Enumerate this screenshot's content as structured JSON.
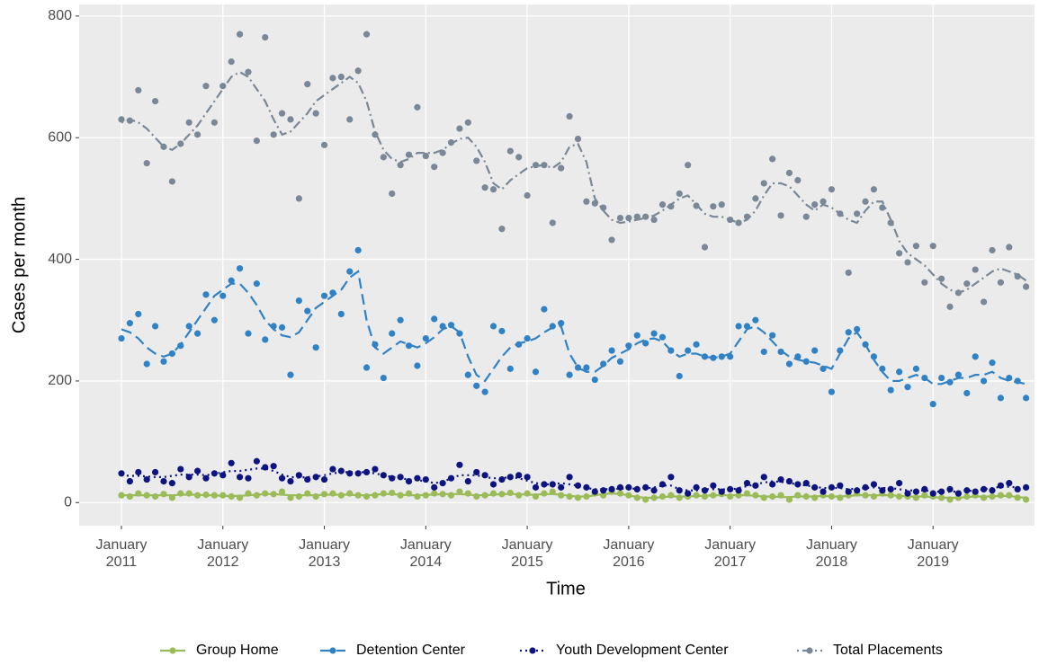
{
  "chart_data": {
    "type": "scatter",
    "x_label": "Time",
    "y_label": "Cases per month",
    "x": [
      "2011-01",
      "2011-02",
      "2011-03",
      "2011-04",
      "2011-05",
      "2011-06",
      "2011-07",
      "2011-08",
      "2011-09",
      "2011-10",
      "2011-11",
      "2011-12",
      "2012-01",
      "2012-02",
      "2012-03",
      "2012-04",
      "2012-05",
      "2012-06",
      "2012-07",
      "2012-08",
      "2012-09",
      "2012-10",
      "2012-11",
      "2012-12",
      "2013-01",
      "2013-02",
      "2013-03",
      "2013-04",
      "2013-05",
      "2013-06",
      "2013-07",
      "2013-08",
      "2013-09",
      "2013-10",
      "2013-11",
      "2013-12",
      "2014-01",
      "2014-02",
      "2014-03",
      "2014-04",
      "2014-05",
      "2014-06",
      "2014-07",
      "2014-08",
      "2014-09",
      "2014-10",
      "2014-11",
      "2014-12",
      "2015-01",
      "2015-02",
      "2015-03",
      "2015-04",
      "2015-05",
      "2015-06",
      "2015-07",
      "2015-08",
      "2015-09",
      "2015-10",
      "2015-11",
      "2015-12",
      "2016-01",
      "2016-02",
      "2016-03",
      "2016-04",
      "2016-05",
      "2016-06",
      "2016-07",
      "2016-08",
      "2016-09",
      "2016-10",
      "2016-11",
      "2016-12",
      "2017-01",
      "2017-02",
      "2017-03",
      "2017-04",
      "2017-05",
      "2017-06",
      "2017-07",
      "2017-08",
      "2017-09",
      "2017-10",
      "2017-11",
      "2017-12",
      "2018-01",
      "2018-02",
      "2018-03",
      "2018-04",
      "2018-05",
      "2018-06",
      "2018-07",
      "2018-08",
      "2018-09",
      "2018-10",
      "2018-11",
      "2018-12",
      "2019-01",
      "2019-02",
      "2019-03",
      "2019-04",
      "2019-05",
      "2019-06",
      "2019-07",
      "2019-08",
      "2019-09",
      "2019-10",
      "2019-11",
      "2019-12"
    ],
    "xlim": [
      "2010-08",
      "2020-01"
    ],
    "xticks": [
      {
        "value": "2011-01",
        "label": "January\n2011"
      },
      {
        "value": "2012-01",
        "label": "January\n2012"
      },
      {
        "value": "2013-01",
        "label": "January\n2013"
      },
      {
        "value": "2014-01",
        "label": "January\n2014"
      },
      {
        "value": "2015-01",
        "label": "January\n2015"
      },
      {
        "value": "2016-01",
        "label": "January\n2016"
      },
      {
        "value": "2017-01",
        "label": "January\n2017"
      },
      {
        "value": "2018-01",
        "label": "January\n2018"
      },
      {
        "value": "2019-01",
        "label": "January\n2019"
      }
    ],
    "ylim": [
      -38,
      819
    ],
    "yticks": [
      0,
      200,
      400,
      600,
      800
    ],
    "grid": true,
    "legend": "bottom",
    "series": [
      {
        "name": "Group Home",
        "color": "#9bbb59",
        "dash": "solid",
        "values": [
          12,
          10,
          15,
          12,
          10,
          14,
          8,
          15,
          15,
          12,
          13,
          12,
          12,
          10,
          8,
          15,
          12,
          15,
          14,
          18,
          8,
          10,
          15,
          10,
          14,
          15,
          12,
          15,
          12,
          10,
          12,
          15,
          16,
          12,
          15,
          10,
          12,
          15,
          14,
          12,
          18,
          15,
          10,
          12,
          15,
          14,
          16,
          12,
          15,
          10,
          15,
          18,
          12,
          10,
          8,
          10,
          15,
          12,
          18,
          15,
          12,
          8,
          5,
          8,
          10,
          12,
          8,
          10,
          12,
          10,
          12,
          14,
          10,
          12,
          15,
          12,
          8,
          10,
          12,
          5,
          12,
          10,
          8,
          12,
          10,
          8,
          12,
          15,
          12,
          10,
          15,
          12,
          10,
          10,
          8,
          12,
          10,
          8,
          5,
          8,
          10,
          12,
          8,
          10,
          12,
          12,
          8,
          5
        ],
        "trend": [
          12,
          12,
          12,
          12,
          12,
          12,
          12,
          13,
          13,
          13,
          12,
          12,
          11,
          11,
          11,
          12,
          13,
          14,
          14,
          13,
          12,
          12,
          12,
          12,
          13,
          13,
          13,
          13,
          12,
          12,
          13,
          14,
          14,
          13,
          12,
          12,
          13,
          13,
          14,
          14,
          14,
          13,
          12,
          12,
          13,
          14,
          14,
          14,
          13,
          13,
          14,
          14,
          13,
          11,
          10,
          10,
          12,
          14,
          15,
          14,
          12,
          9,
          8,
          8,
          9,
          10,
          10,
          10,
          11,
          11,
          12,
          12,
          12,
          12,
          12,
          11,
          10,
          10,
          9,
          9,
          10,
          10,
          10,
          11,
          10,
          10,
          11,
          12,
          12,
          12,
          12,
          12,
          11,
          10,
          10,
          10,
          9,
          8,
          8,
          8,
          9,
          10,
          10,
          10,
          11,
          11,
          9,
          8
        ]
      },
      {
        "name": "Detention Center",
        "color": "#3182c4",
        "dash": "longdash",
        "values": [
          270,
          295,
          310,
          228,
          290,
          232,
          245,
          258,
          290,
          278,
          342,
          300,
          340,
          365,
          385,
          278,
          360,
          268,
          290,
          288,
          210,
          332,
          315,
          255,
          340,
          345,
          310,
          380,
          415,
          222,
          260,
          205,
          278,
          300,
          258,
          225,
          270,
          302,
          290,
          292,
          278,
          210,
          192,
          182,
          290,
          282,
          220,
          260,
          270,
          215,
          318,
          290,
          295,
          210,
          222,
          222,
          202,
          228,
          250,
          232,
          258,
          275,
          262,
          278,
          272,
          250,
          208,
          250,
          260,
          240,
          238,
          240,
          240,
          290,
          290,
          300,
          248,
          275,
          248,
          228,
          240,
          232,
          250,
          220,
          182,
          250,
          280,
          285,
          260,
          240,
          220,
          185,
          215,
          190,
          220,
          205,
          162,
          205,
          198,
          210,
          180,
          240,
          200,
          230,
          172,
          205,
          200,
          172
        ],
        "trend": [
          285,
          280,
          270,
          255,
          245,
          240,
          245,
          260,
          280,
          300,
          320,
          340,
          350,
          360,
          360,
          345,
          325,
          300,
          285,
          275,
          272,
          280,
          300,
          320,
          330,
          340,
          350,
          370,
          380,
          300,
          255,
          245,
          255,
          265,
          260,
          255,
          262,
          272,
          285,
          290,
          280,
          240,
          210,
          200,
          220,
          240,
          255,
          262,
          265,
          270,
          280,
          288,
          290,
          245,
          222,
          215,
          215,
          225,
          238,
          245,
          252,
          262,
          268,
          270,
          265,
          250,
          240,
          245,
          245,
          240,
          238,
          240,
          245,
          265,
          285,
          290,
          280,
          265,
          250,
          240,
          235,
          232,
          230,
          225,
          220,
          245,
          270,
          280,
          260,
          235,
          215,
          200,
          200,
          205,
          210,
          205,
          195,
          195,
          200,
          205,
          205,
          210,
          210,
          215,
          205,
          200,
          198,
          195
        ]
      },
      {
        "name": "Youth Development Center",
        "color": "#0d1480",
        "dash": "dotted",
        "values": [
          48,
          35,
          50,
          38,
          50,
          35,
          32,
          55,
          42,
          52,
          40,
          48,
          45,
          65,
          42,
          40,
          68,
          58,
          60,
          40,
          35,
          45,
          38,
          42,
          38,
          55,
          52,
          48,
          48,
          50,
          55,
          45,
          40,
          42,
          35,
          40,
          38,
          25,
          32,
          40,
          62,
          35,
          50,
          45,
          30,
          38,
          42,
          45,
          42,
          25,
          30,
          30,
          25,
          42,
          28,
          25,
          18,
          20,
          22,
          25,
          25,
          22,
          25,
          20,
          30,
          42,
          20,
          15,
          25,
          20,
          28,
          18,
          22,
          20,
          32,
          28,
          42,
          30,
          38,
          35,
          30,
          32,
          25,
          18,
          25,
          28,
          18,
          20,
          25,
          30,
          20,
          22,
          32,
          15,
          18,
          22,
          15,
          18,
          22,
          15,
          20,
          18,
          22,
          20,
          28,
          32,
          22,
          25
        ],
        "trend": [
          45,
          44,
          44,
          43,
          42,
          42,
          44,
          46,
          46,
          46,
          45,
          47,
          50,
          52,
          52,
          54,
          56,
          56,
          52,
          46,
          42,
          41,
          42,
          43,
          45,
          48,
          50,
          50,
          50,
          50,
          48,
          45,
          42,
          40,
          38,
          37,
          35,
          32,
          34,
          40,
          45,
          45,
          45,
          42,
          40,
          40,
          42,
          40,
          36,
          32,
          30,
          30,
          32,
          30,
          28,
          24,
          22,
          22,
          22,
          23,
          23,
          23,
          23,
          25,
          28,
          28,
          22,
          20,
          20,
          22,
          22,
          22,
          21,
          24,
          27,
          30,
          33,
          35,
          34,
          32,
          30,
          28,
          26,
          24,
          24,
          24,
          22,
          23,
          24,
          25,
          24,
          24,
          22,
          20,
          20,
          20,
          18,
          18,
          18,
          18,
          19,
          20,
          22,
          24,
          26,
          26,
          25,
          24
        ]
      },
      {
        "name": "Total Placements",
        "color": "#7a8796",
        "dash": "dotdash",
        "values": [
          630,
          628,
          678,
          558,
          660,
          585,
          528,
          590,
          625,
          605,
          685,
          625,
          685,
          725,
          770,
          708,
          595,
          765,
          605,
          640,
          630,
          500,
          688,
          640,
          588,
          698,
          700,
          630,
          710,
          770,
          605,
          568,
          508,
          555,
          572,
          650,
          570,
          552,
          575,
          592,
          615,
          625,
          562,
          518,
          515,
          450,
          578,
          568,
          505,
          555,
          555,
          460,
          550,
          635,
          598,
          495,
          492,
          485,
          432,
          468,
          468,
          470,
          470,
          465,
          490,
          487,
          508,
          555,
          488,
          420,
          487,
          490,
          465,
          460,
          470,
          500,
          525,
          565,
          472,
          542,
          530,
          470,
          490,
          495,
          515,
          475,
          378,
          475,
          495,
          515,
          485,
          460,
          410,
          395,
          422,
          362,
          422,
          368,
          322,
          345,
          360,
          383,
          330,
          415,
          362,
          420,
          372,
          355
        ],
        "trend": [
          625,
          630,
          625,
          615,
          600,
          585,
          580,
          590,
          605,
          620,
          640,
          660,
          680,
          700,
          708,
          700,
          680,
          660,
          630,
          605,
          610,
          625,
          640,
          660,
          670,
          680,
          690,
          700,
          690,
          660,
          610,
          580,
          565,
          560,
          565,
          575,
          575,
          575,
          580,
          590,
          598,
          600,
          585,
          560,
          525,
          515,
          530,
          540,
          550,
          553,
          555,
          550,
          560,
          585,
          590,
          560,
          500,
          480,
          465,
          460,
          462,
          465,
          468,
          472,
          480,
          490,
          500,
          505,
          490,
          475,
          470,
          470,
          465,
          460,
          465,
          480,
          505,
          525,
          525,
          520,
          505,
          490,
          480,
          490,
          485,
          475,
          465,
          460,
          480,
          495,
          495,
          465,
          430,
          410,
          400,
          390,
          375,
          360,
          350,
          345,
          350,
          360,
          370,
          380,
          385,
          380,
          375,
          365
        ]
      }
    ]
  }
}
